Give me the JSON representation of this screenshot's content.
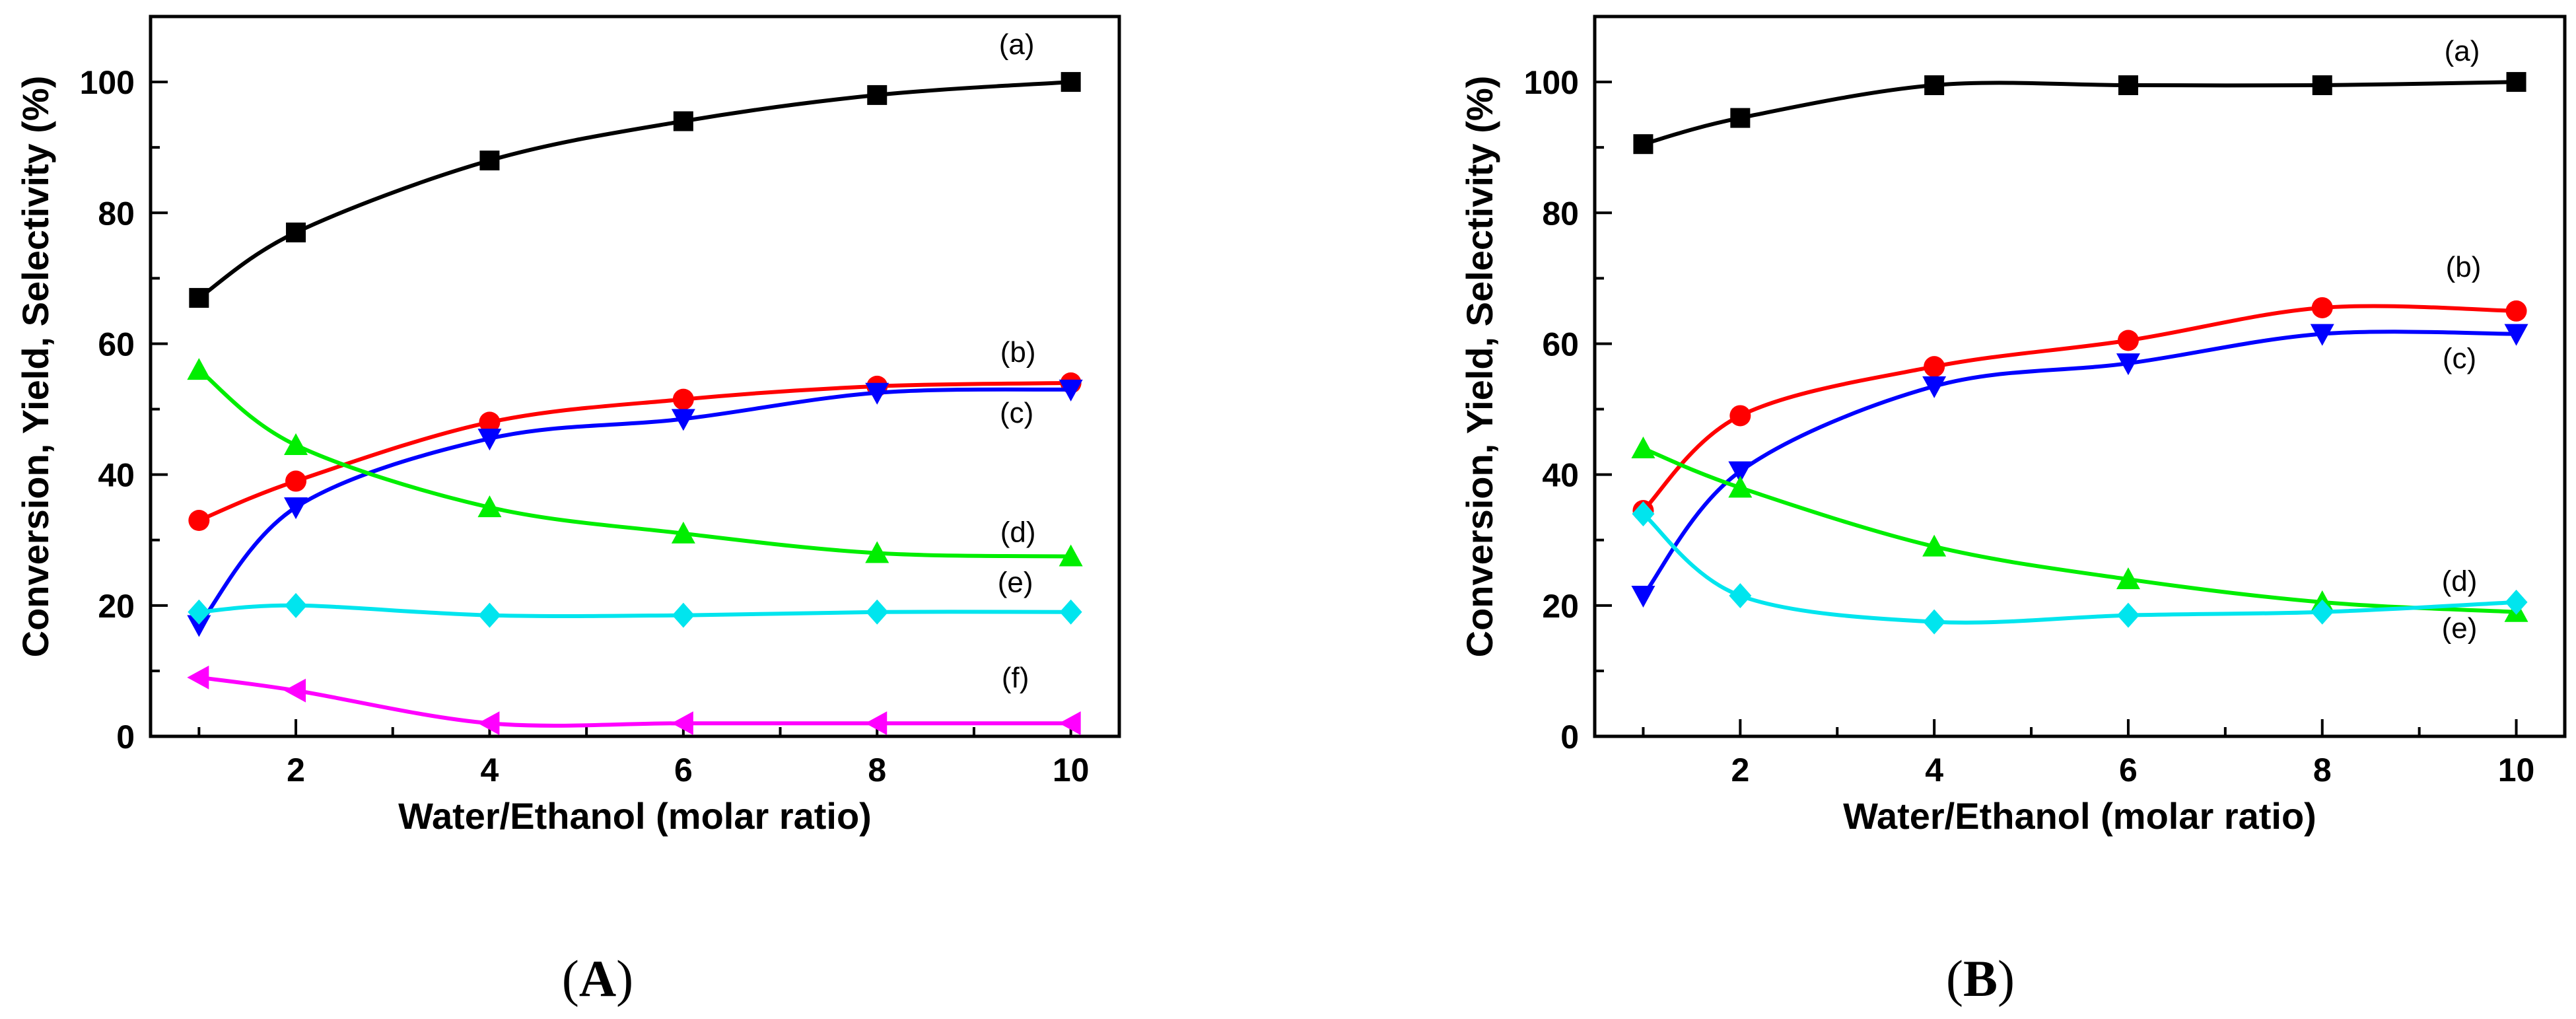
{
  "panel_labels": [
    "A",
    "B"
  ],
  "chart_data": [
    {
      "type": "line",
      "panel": "A",
      "xlabel": "Water/Ethanol (molar ratio)",
      "ylabel": "Conversion, Yield, Selectivity (%)",
      "xlim": [
        0.5,
        10.5
      ],
      "ylim": [
        0,
        110
      ],
      "x_ticks": [
        2,
        4,
        6,
        8,
        10
      ],
      "y_ticks": [
        0,
        20,
        40,
        60,
        80,
        100
      ],
      "grid": false,
      "x": [
        1,
        2,
        4,
        6,
        8,
        10
      ],
      "series": [
        {
          "label": "(a)",
          "color": "#000000",
          "marker": "square",
          "values": [
            67,
            77,
            88,
            94,
            98,
            100
          ]
        },
        {
          "label": "(b)",
          "color": "#ff0000",
          "marker": "circle",
          "values": [
            33,
            39,
            48,
            51.5,
            53.5,
            54
          ]
        },
        {
          "label": "(c)",
          "color": "#0000ff",
          "marker": "triangle-down",
          "values": [
            17,
            35,
            45.5,
            48.5,
            52.5,
            53
          ]
        },
        {
          "label": "(d)",
          "color": "#00ee00",
          "marker": "triangle-up",
          "values": [
            56,
            44.5,
            35,
            31,
            28,
            27.5
          ]
        },
        {
          "label": "(e)",
          "color": "#00e5ee",
          "marker": "diamond",
          "values": [
            19,
            20,
            18.5,
            18.5,
            19,
            19
          ]
        },
        {
          "label": "(f)",
          "color": "#ff00ff",
          "marker": "triangle-left",
          "values": [
            9,
            7,
            2,
            2,
            2,
            2
          ]
        }
      ]
    },
    {
      "type": "line",
      "panel": "B",
      "xlabel": "Water/Ethanol (molar ratio)",
      "ylabel": "Conversion, Yield, Selectivity (%)",
      "xlim": [
        0.5,
        10.5
      ],
      "ylim": [
        0,
        110
      ],
      "x_ticks": [
        2,
        4,
        6,
        8,
        10
      ],
      "y_ticks": [
        0,
        20,
        40,
        60,
        80,
        100
      ],
      "grid": false,
      "x": [
        1,
        2,
        4,
        6,
        8,
        10
      ],
      "series": [
        {
          "label": "(a)",
          "color": "#000000",
          "marker": "square",
          "values": [
            90.5,
            94.5,
            99.5,
            99.5,
            99.5,
            100
          ]
        },
        {
          "label": "(b)",
          "color": "#ff0000",
          "marker": "circle",
          "values": [
            34.5,
            49,
            56.5,
            60.5,
            65.5,
            65
          ]
        },
        {
          "label": "(c)",
          "color": "#0000ff",
          "marker": "triangle-down",
          "values": [
            21.5,
            40.5,
            53.5,
            57,
            61.5,
            61.5
          ]
        },
        {
          "label": "(d)",
          "color": "#00ee00",
          "marker": "triangle-up",
          "values": [
            44,
            38,
            29,
            24,
            20.5,
            19
          ]
        },
        {
          "label": "(e)",
          "color": "#00e5ee",
          "marker": "diamond",
          "values": [
            34,
            21.5,
            17.5,
            18.5,
            19,
            20.5
          ]
        }
      ]
    }
  ]
}
